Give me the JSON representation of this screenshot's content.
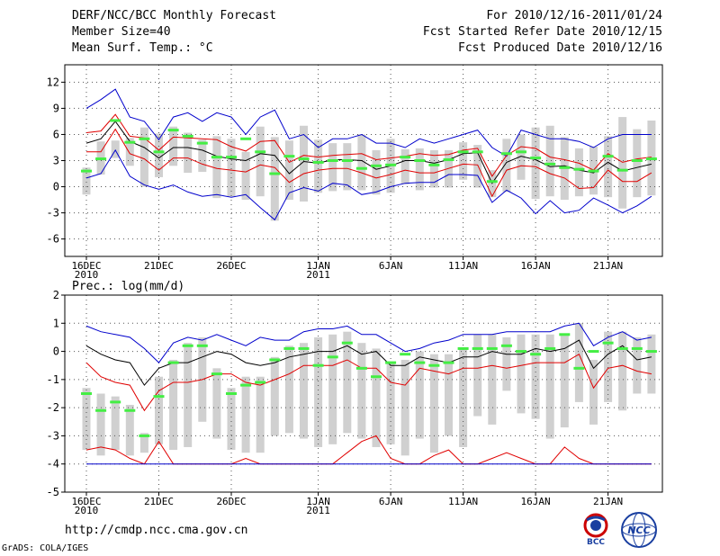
{
  "header": {
    "title": "DERF/NCC/BCC Monthly Forecast",
    "member_size": "Member Size=40",
    "variable_temp": "Mean Surf. Temp.: °C",
    "period": "For 2010/12/16-2011/01/24",
    "start_date": "Fcst Started Refer Date 2010/12/15",
    "produced_date": "Fcst Produced Date 2010/12/16"
  },
  "footer": {
    "url": "http://cmdp.ncc.cma.gov.cn",
    "credit": "GrADS: COLA/IGES",
    "logo_bcc_text": "BCC",
    "logo_ncc_text": "NCC"
  },
  "colors": {
    "mean": "#000000",
    "spread_outer": "#0000cc",
    "spread_inner": "#e00000",
    "box": "#d0d0d0",
    "median_marker": "#44ee44",
    "grid": "#555555"
  },
  "chart_data": [
    {
      "type": "line",
      "title": "Mean Surf. Temp.: °C",
      "x_ticks": [
        {
          "label": "16DEC",
          "sub": "2010",
          "day": 0
        },
        {
          "label": "21DEC",
          "sub": "",
          "day": 5
        },
        {
          "label": "26DEC",
          "sub": "",
          "day": 10
        },
        {
          "label": "1JAN",
          "sub": "2011",
          "day": 16
        },
        {
          "label": "6JAN",
          "sub": "",
          "day": 21
        },
        {
          "label": "11JAN",
          "sub": "",
          "day": 26
        },
        {
          "label": "16JAN",
          "sub": "",
          "day": 31
        },
        {
          "label": "21JAN",
          "sub": "",
          "day": 36
        }
      ],
      "y_ticks": [
        12,
        9,
        6,
        3,
        0,
        -3,
        -6
      ],
      "ylim": [
        -8,
        14
      ],
      "series": [
        {
          "name": "max",
          "color": "blue",
          "values": [
            9,
            10,
            11.2,
            8,
            7.5,
            5.4,
            8,
            8.5,
            7.5,
            8.5,
            8,
            6,
            8,
            8.8,
            5.5,
            6,
            4.5,
            5.5,
            5.5,
            6,
            5,
            5,
            4.5,
            5.5,
            5,
            5.5,
            6,
            6.5,
            4.5,
            3.5,
            6.5,
            6,
            5.5,
            5.5,
            5.2,
            4.5,
            5.5,
            6,
            6,
            6
          ]
        },
        {
          "name": "p90",
          "color": "red",
          "values": [
            6.2,
            6.4,
            8.3,
            5.8,
            5.6,
            4.2,
            5.7,
            5.6,
            5.5,
            5.4,
            4.6,
            4.1,
            5.2,
            5.3,
            2.8,
            3.6,
            3.4,
            3.6,
            3.7,
            3.8,
            3.1,
            3.3,
            3.5,
            3.8,
            3.6,
            3.7,
            4.2,
            4.4,
            1.2,
            3.6,
            4.6,
            4.4,
            3.4,
            3.1,
            2.7,
            1.9,
            3.8,
            2.8,
            3.2,
            3.4
          ]
        },
        {
          "name": "mean",
          "color": "black",
          "values": [
            5,
            5.5,
            7.5,
            5.2,
            4.5,
            3.3,
            4.5,
            4.5,
            4.2,
            3.5,
            3.2,
            3.0,
            3.8,
            3.6,
            1.5,
            2.9,
            2.7,
            3.1,
            3.1,
            3.0,
            2.0,
            2.4,
            3.0,
            3.0,
            2.7,
            3.1,
            3.8,
            3.9,
            0.4,
            2.8,
            3.5,
            3.1,
            2.3,
            2.4,
            1.9,
            1.6,
            2.8,
            1.8,
            2.2,
            2.6
          ]
        },
        {
          "name": "p10",
          "color": "red",
          "values": [
            4,
            4,
            6.6,
            3.8,
            3.2,
            1.9,
            3.3,
            3.3,
            2.6,
            2.1,
            1.9,
            1.7,
            2.5,
            2.2,
            0.5,
            1.5,
            1.9,
            2.1,
            2.1,
            1.6,
            1.0,
            1.4,
            1.9,
            1.6,
            1.6,
            2.1,
            2.6,
            2.5,
            -1.1,
            1.9,
            2.4,
            2.3,
            1.5,
            1.0,
            -0.2,
            -0.1,
            1.9,
            0.6,
            0.6,
            1.6
          ]
        },
        {
          "name": "min",
          "color": "blue",
          "values": [
            1,
            1.5,
            4.2,
            1.2,
            0.2,
            -0.3,
            0.2,
            -0.6,
            -1.1,
            -0.9,
            -1.2,
            -0.9,
            -2.4,
            -3.8,
            -0.7,
            -0.1,
            -0.5,
            0.4,
            0.2,
            -0.9,
            -0.6,
            0,
            0.4,
            0.5,
            0.5,
            1.4,
            1.4,
            1.3,
            -1.8,
            -0.4,
            -1.3,
            -3.1,
            -1.6,
            -3.0,
            -2.7,
            -1.3,
            -2.1,
            -3.0,
            -2.2,
            -1.1
          ]
        }
      ],
      "boxes": {
        "tops": [
          2.2,
          5.2,
          5.3,
          5.6,
          6.8,
          6.1,
          6.9,
          6.2,
          5.4,
          5.8,
          5.5,
          4.0,
          6.9,
          5.7,
          5.3,
          7.0,
          5.4,
          5.0,
          5.0,
          6.0,
          4.2,
          5.5,
          4.3,
          4.4,
          4.2,
          4.2,
          5.1,
          4.8,
          1.9,
          5.5,
          6.0,
          6.8,
          7.0,
          5.7,
          4.4,
          4.6,
          5.8,
          8.0,
          6.6,
          7.6
        ],
        "bottoms": [
          -0.9,
          1.4,
          3.3,
          2.4,
          0.0,
          1.1,
          2.4,
          1.6,
          1.7,
          -1.3,
          -1.1,
          -1.5,
          -1.1,
          -3.9,
          -1.5,
          -1.7,
          -0.7,
          -0.5,
          -0.4,
          -0.4,
          -0.9,
          -0.7,
          0.3,
          -0.4,
          -0.1,
          -0.1,
          0.8,
          -0.1,
          -1.2,
          -0.6,
          0.8,
          -1.4,
          -1.1,
          -1.5,
          -1.1,
          -0.9,
          -1.2,
          -2.5,
          -1.2,
          -1.0
        ],
        "markers": [
          1.8,
          3.2,
          7.6,
          5.1,
          5.5,
          4.0,
          6.5,
          5.8,
          5.0,
          3.4,
          3.4,
          5.5,
          4.0,
          1.5,
          3.5,
          3.2,
          2.8,
          3.0,
          3.0,
          2.1,
          2.4,
          2.5,
          3.4,
          3.0,
          2.5,
          3.1,
          4.0,
          4.0,
          0.6,
          3.8,
          4.0,
          3.3,
          2.6,
          2.2,
          2.0,
          1.8,
          3.5,
          1.9,
          3.0,
          3.2
        ]
      }
    },
    {
      "type": "line",
      "title": "Prec.: log(mm/d)",
      "x_ticks": [
        {
          "label": "16DEC",
          "sub": "2010",
          "day": 0
        },
        {
          "label": "21DEC",
          "sub": "",
          "day": 5
        },
        {
          "label": "26DEC",
          "sub": "",
          "day": 10
        },
        {
          "label": "1JAN",
          "sub": "2011",
          "day": 16
        },
        {
          "label": "6JAN",
          "sub": "",
          "day": 21
        },
        {
          "label": "11JAN",
          "sub": "",
          "day": 26
        },
        {
          "label": "16JAN",
          "sub": "",
          "day": 31
        },
        {
          "label": "21JAN",
          "sub": "",
          "day": 36
        }
      ],
      "y_ticks": [
        2,
        1,
        0,
        -1,
        -2,
        -3,
        -4,
        -5
      ],
      "ylim": [
        -5,
        2
      ],
      "series": [
        {
          "name": "max",
          "color": "blue",
          "values": [
            0.9,
            0.7,
            0.6,
            0.5,
            0.1,
            -0.4,
            0.3,
            0.5,
            0.4,
            0.6,
            0.4,
            0.2,
            0.5,
            0.4,
            0.4,
            0.7,
            0.8,
            0.8,
            0.9,
            0.6,
            0.6,
            0.3,
            0.0,
            0.1,
            0.3,
            0.4,
            0.6,
            0.6,
            0.6,
            0.7,
            0.7,
            0.7,
            0.7,
            0.9,
            1.0,
            0.2,
            0.5,
            0.7,
            0.4,
            0.5
          ]
        },
        {
          "name": "p90",
          "color": "black",
          "values": [
            0.2,
            -0.1,
            -0.3,
            -0.4,
            -1.2,
            -0.6,
            -0.4,
            -0.4,
            -0.2,
            0.0,
            -0.1,
            -0.4,
            -0.5,
            -0.4,
            -0.2,
            -0.1,
            0.0,
            0.0,
            0.2,
            -0.1,
            0.0,
            -0.5,
            -0.5,
            -0.2,
            -0.3,
            -0.4,
            -0.2,
            -0.2,
            0.0,
            -0.1,
            -0.1,
            0.1,
            0.0,
            0.1,
            0.4,
            -0.6,
            -0.1,
            0.2,
            -0.3,
            -0.2
          ]
        },
        {
          "name": "mean",
          "color": "red",
          "values": [
            -0.4,
            -0.9,
            -1.1,
            -1.2,
            -2.1,
            -1.4,
            -1.1,
            -1.1,
            -1.0,
            -0.8,
            -0.8,
            -1.1,
            -1.2,
            -1.0,
            -0.8,
            -0.5,
            -0.5,
            -0.5,
            -0.3,
            -0.6,
            -0.6,
            -1.1,
            -1.2,
            -0.6,
            -0.7,
            -0.8,
            -0.6,
            -0.6,
            -0.5,
            -0.6,
            -0.5,
            -0.4,
            -0.4,
            -0.4,
            -0.1,
            -1.3,
            -0.6,
            -0.5,
            -0.7,
            -0.8
          ]
        },
        {
          "name": "p10",
          "color": "red",
          "values": [
            -3.5,
            -3.4,
            -3.5,
            -3.8,
            -4.0,
            -3.2,
            -4.0,
            -4.0,
            -4.0,
            -4.0,
            -4.0,
            -3.8,
            -4.0,
            -4.0,
            -4.0,
            -4.0,
            -4.0,
            -4.0,
            -3.6,
            -3.2,
            -3.0,
            -3.8,
            -4.0,
            -4.0,
            -3.7,
            -3.5,
            -4.0,
            -4.0,
            -3.8,
            -3.6,
            -3.8,
            -4.0,
            -4.0,
            -3.4,
            -3.8,
            -4.0,
            -4.0,
            -4.0,
            -4.0,
            -4.0
          ]
        },
        {
          "name": "min",
          "color": "blue",
          "values": [
            -4,
            -4,
            -4,
            -4,
            -4,
            -4,
            -4,
            -4,
            -4,
            -4,
            -4,
            -4,
            -4,
            -4,
            -4,
            -4,
            -4,
            -4,
            -4,
            -4,
            -4,
            -4,
            -4,
            -4,
            -4,
            -4,
            -4,
            -4,
            -4,
            -4,
            -4,
            -4,
            -4,
            -4,
            -4,
            -4,
            -4,
            -4,
            -4,
            -4
          ]
        }
      ],
      "boxes": {
        "tops": [
          -1.3,
          -1.5,
          -1.6,
          -1.9,
          -2.9,
          -0.9,
          -0.3,
          0.3,
          0.5,
          -0.6,
          -1.3,
          -0.9,
          -0.9,
          -0.2,
          0.2,
          0.3,
          0.5,
          0.6,
          0.7,
          0.3,
          0.1,
          -0.4,
          -0.3,
          0.0,
          -0.1,
          -0.1,
          0.1,
          0.6,
          0.6,
          0.5,
          0.6,
          0.6,
          0.6,
          0.6,
          1.0,
          -0.3,
          0.7,
          0.7,
          0.5,
          0.6
        ],
        "bottoms": [
          -3.5,
          -3.7,
          -3.5,
          -3.7,
          -3.6,
          -3.3,
          -3.5,
          -3.4,
          -2.5,
          -3.1,
          -3.5,
          -3.6,
          -3.6,
          -3.0,
          -2.9,
          -3.1,
          -3.4,
          -3.3,
          -2.9,
          -3.1,
          -3.4,
          -3.3,
          -3.7,
          -3.1,
          -3.6,
          -3.0,
          -3.4,
          -2.3,
          -2.6,
          -1.4,
          -2.2,
          -2.4,
          -3.1,
          -2.7,
          -1.8,
          -2.6,
          -1.8,
          -2.1,
          -1.5,
          -1.5
        ],
        "markers": [
          -1.5,
          -2.1,
          -1.8,
          -2.1,
          -3.0,
          -1.6,
          -0.4,
          0.2,
          0.2,
          -0.8,
          -1.5,
          -1.2,
          -1.1,
          -0.3,
          0.1,
          0.1,
          -0.5,
          -0.2,
          0.3,
          -0.6,
          -0.9,
          -0.4,
          -0.1,
          -0.4,
          -0.5,
          -0.4,
          0.1,
          0.1,
          0.1,
          0.2,
          0.0,
          -0.1,
          0.1,
          0.6,
          -0.6,
          0.0,
          0.3,
          0.1,
          0.1,
          0.0
        ]
      }
    }
  ]
}
